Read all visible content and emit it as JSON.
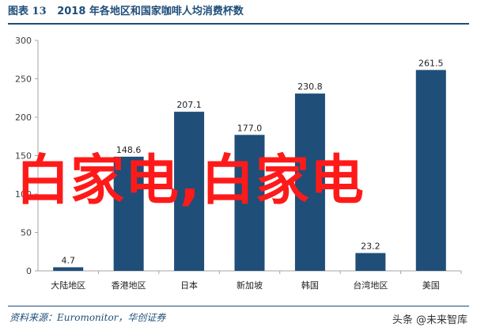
{
  "figure": {
    "label": "图表",
    "number": "13",
    "title": "2018 年各地区和国家咖啡人均消费杯数"
  },
  "source": "资料来源：Euromonitor，华创证券",
  "overlay": {
    "watermark": "白家电,白家电",
    "credit": "头条 @未来智库"
  },
  "colors": {
    "bar": "#1f4e79",
    "axis": "#a6a6a6",
    "text": "#404040"
  },
  "chart_data": {
    "type": "bar",
    "categories": [
      "大陆地区",
      "香港地区",
      "日本",
      "新加坡",
      "韩国",
      "台湾地区",
      "美国"
    ],
    "values": [
      4.7,
      148.6,
      207.1,
      177.0,
      230.8,
      23.2,
      261.5
    ],
    "value_labels": [
      "4.7",
      "148.6",
      "207.1",
      "177.0",
      "230.8",
      "23.2",
      "261.5"
    ],
    "ylim": [
      0,
      300
    ],
    "yticks": [
      0,
      50,
      100,
      150,
      200,
      250,
      300
    ],
    "grid": false,
    "legend": "none"
  }
}
